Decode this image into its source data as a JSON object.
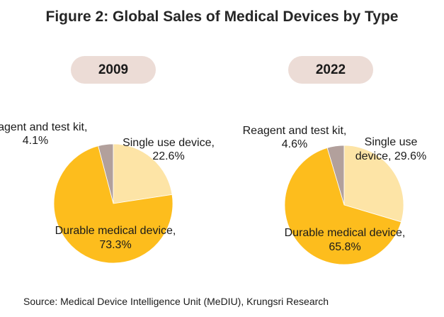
{
  "title": "Figure 2: Global Sales of Medical Devices by Type",
  "source": "Source: Medical Device Intelligence Unit (MeDIU), Krungsri Research",
  "chart_data": [
    {
      "type": "pie",
      "title": "2009",
      "categories": [
        "Durable medical device",
        "Reagent and test kit",
        "Single use device"
      ],
      "values": [
        73.3,
        4.1,
        22.6
      ],
      "unit": "%",
      "colors": [
        "#fdbd1d",
        "#b2a09c",
        "#fde4a6"
      ],
      "labels": [
        [
          "Durable medical device,",
          "73.3%"
        ],
        [
          "Reagent  and test kit,",
          "4.1%"
        ],
        [
          "Single use device,",
          "22.6%"
        ]
      ]
    },
    {
      "type": "pie",
      "title": "2022",
      "categories": [
        "Durable medical device",
        "Reagent and test kit",
        "Single use device"
      ],
      "values": [
        65.8,
        4.6,
        29.6
      ],
      "unit": "%",
      "colors": [
        "#fdbd1d",
        "#b2a09c",
        "#fde4a6"
      ],
      "labels": [
        [
          "Durable medical device,",
          "65.8%"
        ],
        [
          "Reagent  and test kit,",
          "4.6%"
        ],
        [
          "Single use",
          "device, 29.6%"
        ]
      ]
    }
  ]
}
